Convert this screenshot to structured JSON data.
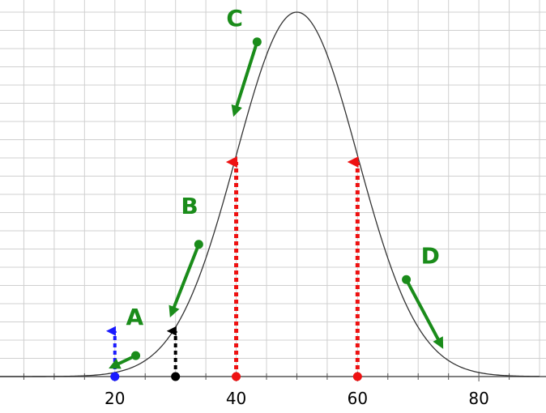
{
  "chart_data": {
    "type": "line",
    "title": "",
    "xlabel": "",
    "ylabel": "",
    "xlim": [
      0,
      90
    ],
    "ylim": [
      0,
      1
    ],
    "grid": true,
    "xticks": [
      20,
      40,
      60,
      80
    ],
    "xtick_labels": [
      "20",
      "40",
      "60",
      "80"
    ],
    "curve": {
      "kind": "normal",
      "mean": 50,
      "sd": 10,
      "peak": 1.0
    },
    "dotted_markers": [
      {
        "x": 20,
        "color": "#1a1aff"
      },
      {
        "x": 30,
        "color": "#000000"
      },
      {
        "x": 40,
        "color": "#ee1111"
      },
      {
        "x": 60,
        "color": "#ee1111"
      }
    ],
    "point_labels": [
      {
        "label": "A",
        "x": 23.5,
        "color": "#1a8c1a"
      },
      {
        "label": "B",
        "x": 33.5,
        "color": "#1a8c1a"
      },
      {
        "label": "C",
        "x": 43.5,
        "color": "#1a8c1a"
      },
      {
        "label": "D",
        "x": 69.0,
        "color": "#1a8c1a"
      }
    ],
    "colors": {
      "curve": "#333333",
      "grid": "#d0d0d0",
      "axis": "#555555",
      "tangent_arrow": "#1a8c1a"
    }
  }
}
